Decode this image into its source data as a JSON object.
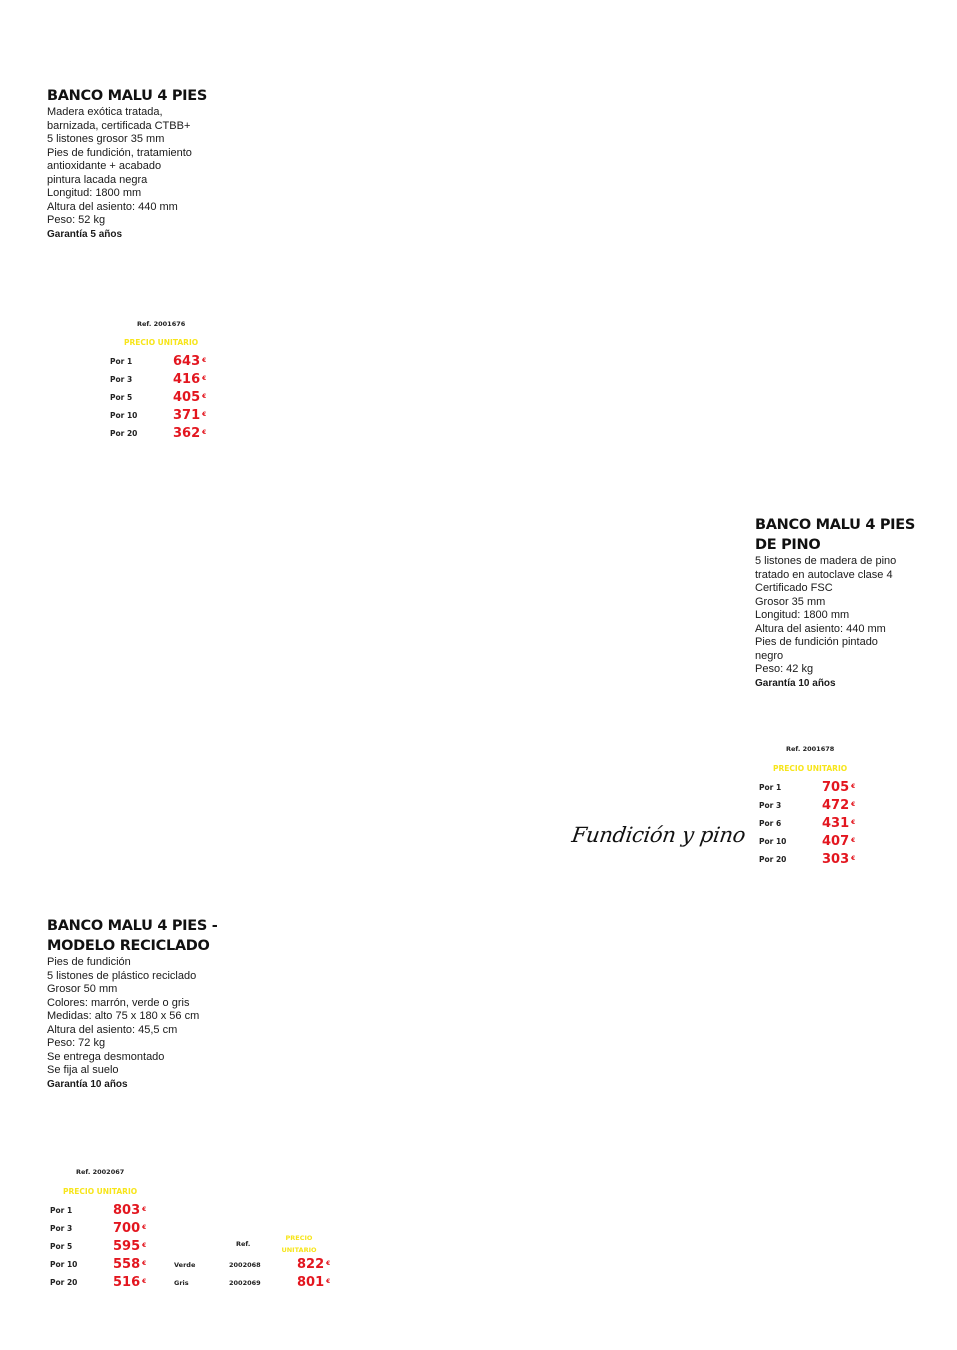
{
  "currency": "€",
  "products": [
    {
      "title": "BANCO MALU 4 PIES",
      "description": [
        "Madera exótica tratada,",
        "barnizada, certificada CTBB+",
        "5 listones grosor 35 mm",
        "Pies de fundición, tratamiento",
        "antioxidante + acabado",
        "pintura lacada negra",
        "Longitud: 1800 mm",
        "Altura del asiento: 440 mm",
        "Peso: 52 kg"
      ],
      "warranty": "Garantía 5 años",
      "ref": "Ref. 2001676",
      "unit_price_label": "PRECIO UNITARIO",
      "tiers": [
        {
          "qty": "Por 1",
          "price": "643"
        },
        {
          "qty": "Por 3",
          "price": "416"
        },
        {
          "qty": "Por 5",
          "price": "405"
        },
        {
          "qty": "Por 10",
          "price": "371"
        },
        {
          "qty": "Por 20",
          "price": "362"
        }
      ]
    },
    {
      "title": "BANCO MALU 4 PIES\nDE PINO",
      "description": [
        "5 listones de madera de pino",
        "tratado en autoclave clase 4",
        "Certificado FSC",
        "Grosor 35 mm",
        "Longitud: 1800 mm",
        "Altura del asiento: 440 mm",
        "Pies de fundición pintado",
        "negro",
        "Peso: 42 kg"
      ],
      "warranty": "Garantía 10 años",
      "ref": "Ref. 2001678",
      "unit_price_label": "PRECIO UNITARIO",
      "tiers": [
        {
          "qty": "Por 1",
          "price": "705"
        },
        {
          "qty": "Por 3",
          "price": "472"
        },
        {
          "qty": "Por 6",
          "price": "431"
        },
        {
          "qty": "Por 10",
          "price": "407"
        },
        {
          "qty": "Por 20",
          "price": "303"
        }
      ],
      "script_caption": "Fundición y pino"
    },
    {
      "title": "BANCO MALU 4 PIES -\nMODELO RECICLADO",
      "description": [
        "Pies de fundición",
        "5 listones de plástico reciclado",
        "Grosor 50 mm",
        "Colores: marrón, verde o gris",
        "Medidas: alto 75 x 180 x 56 cm",
        "Altura del asiento: 45,5 cm",
        "Peso: 72 kg",
        "Se entrega desmontado",
        "Se fija al suelo"
      ],
      "warranty": "Garantía 10 años",
      "ref": "Ref. 2002067",
      "unit_price_label": "PRECIO UNITARIO",
      "tiers": [
        {
          "qty": "Por 1",
          "price": "803"
        },
        {
          "qty": "Por 3",
          "price": "700"
        },
        {
          "qty": "Por 5",
          "price": "595"
        },
        {
          "qty": "Por 10",
          "price": "558"
        },
        {
          "qty": "Por 20",
          "price": "516"
        }
      ],
      "variants": {
        "ref_header": "Ref.",
        "price_header": "PRECIO\nUNITARIO",
        "items": [
          {
            "color": "Verde",
            "ref": "2002068",
            "price": "822"
          },
          {
            "color": "Gris",
            "ref": "2002069",
            "price": "801"
          }
        ]
      }
    }
  ]
}
